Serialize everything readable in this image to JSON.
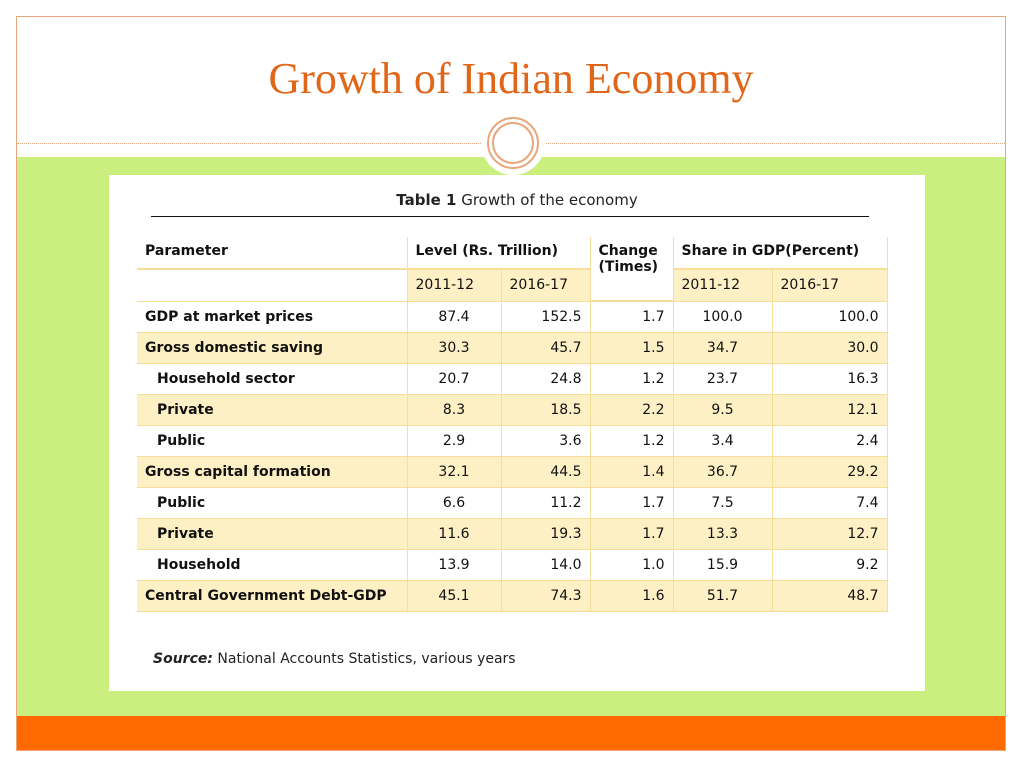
{
  "slide": {
    "title": "Growth of Indian Economy",
    "colors": {
      "title": "#e0661a",
      "green": "#cbef7f",
      "orange": "#ff6a00",
      "row_shade": "#fdf0c4"
    }
  },
  "table": {
    "caption_label": "Table 1",
    "caption_text": "Growth of the economy",
    "headers": {
      "parameter": "Parameter",
      "level": "Level (Rs. Trillion)",
      "change": "Change (Times)",
      "share": "Share in GDP(Percent)",
      "year1": "2011-12",
      "year2": "2016-17",
      "year3": "2011-12",
      "year4": "2016-17"
    },
    "rows": [
      {
        "parameter": "GDP at market prices",
        "level_2011": "87.4",
        "level_2016": "152.5",
        "change": "1.7",
        "share_2011": "100.0",
        "share_2016": "100.0"
      },
      {
        "parameter": "Gross domestic saving",
        "level_2011": "30.3",
        "level_2016": "45.7",
        "change": "1.5",
        "share_2011": "34.7",
        "share_2016": "30.0"
      },
      {
        "parameter": "Household sector",
        "level_2011": "20.7",
        "level_2016": "24.8",
        "change": "1.2",
        "share_2011": "23.7",
        "share_2016": "16.3"
      },
      {
        "parameter": "Private",
        "level_2011": "8.3",
        "level_2016": "18.5",
        "change": "2.2",
        "share_2011": "9.5",
        "share_2016": "12.1"
      },
      {
        "parameter": "Public",
        "level_2011": "2.9",
        "level_2016": "3.6",
        "change": "1.2",
        "share_2011": "3.4",
        "share_2016": "2.4"
      },
      {
        "parameter": "Gross capital formation",
        "level_2011": "32.1",
        "level_2016": "44.5",
        "change": "1.4",
        "share_2011": "36.7",
        "share_2016": "29.2"
      },
      {
        "parameter": "Public",
        "level_2011": "6.6",
        "level_2016": "11.2",
        "change": "1.7",
        "share_2011": "7.5",
        "share_2016": "7.4"
      },
      {
        "parameter": "Private",
        "level_2011": "11.6",
        "level_2016": "19.3",
        "change": "1.7",
        "share_2011": "13.3",
        "share_2016": "12.7"
      },
      {
        "parameter": "Household",
        "level_2011": "13.9",
        "level_2016": "14.0",
        "change": "1.0",
        "share_2011": "15.9",
        "share_2016": "9.2"
      },
      {
        "parameter": "Central Government Debt-GDP",
        "level_2011": "45.1",
        "level_2016": "74.3",
        "change": "1.6",
        "share_2011": "51.7",
        "share_2016": "48.7"
      }
    ],
    "source_label": "Source:",
    "source_text": "National Accounts Statistics, various years"
  }
}
